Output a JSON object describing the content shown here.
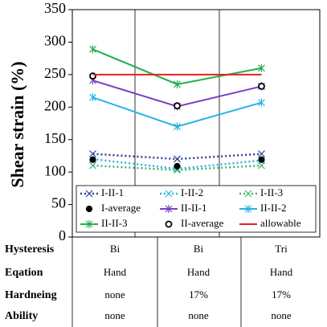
{
  "chart_data": {
    "type": "line",
    "ylabel": "Shear strain (%)",
    "categories": [
      "Bi",
      "Bi",
      "Tri"
    ],
    "ylim": [
      0,
      350
    ],
    "yticks": [
      0,
      50,
      100,
      150,
      200,
      250,
      300,
      350
    ],
    "series": [
      {
        "name": "I-II-1",
        "color": "#2e3d9c",
        "line": "dotted",
        "marker": "x",
        "values": [
          128,
          120,
          128
        ]
      },
      {
        "name": "I-II-2",
        "color": "#27b4e6",
        "line": "dotted",
        "marker": "x",
        "values": [
          120,
          105,
          118
        ]
      },
      {
        "name": "I-II-3",
        "color": "#3cb371",
        "line": "dotted",
        "marker": "x",
        "values": [
          110,
          103,
          110
        ]
      },
      {
        "name": "I-average",
        "color": "#000000",
        "line": "none",
        "marker": "dot",
        "values": [
          119,
          109,
          119
        ]
      },
      {
        "name": "II-II-1",
        "color": "#7a3fbf",
        "line": "solid",
        "marker": "star",
        "values": [
          241,
          201,
          232
        ]
      },
      {
        "name": "II-II-2",
        "color": "#27b4e6",
        "line": "solid",
        "marker": "star",
        "values": [
          215,
          170,
          207
        ]
      },
      {
        "name": "II-II-3",
        "color": "#22b04c",
        "line": "solid",
        "marker": "star",
        "values": [
          289,
          235,
          260
        ]
      },
      {
        "name": "II-average",
        "color": "#000000",
        "line": "none",
        "marker": "circle",
        "values": [
          248,
          202,
          232
        ]
      },
      {
        "name": "allowable",
        "color": "#e8201c",
        "line": "solid",
        "marker": "none",
        "values": [
          250,
          250,
          250
        ]
      }
    ]
  },
  "table": {
    "rows": [
      [
        "Hysteresis",
        "Bi",
        "Bi",
        "Tri"
      ],
      [
        "Eqation",
        "Hand",
        "Hand",
        "Hand"
      ],
      [
        "Hardneing",
        "none",
        "17%",
        "17%"
      ],
      [
        "Ability",
        "none",
        "none",
        "none"
      ]
    ]
  }
}
